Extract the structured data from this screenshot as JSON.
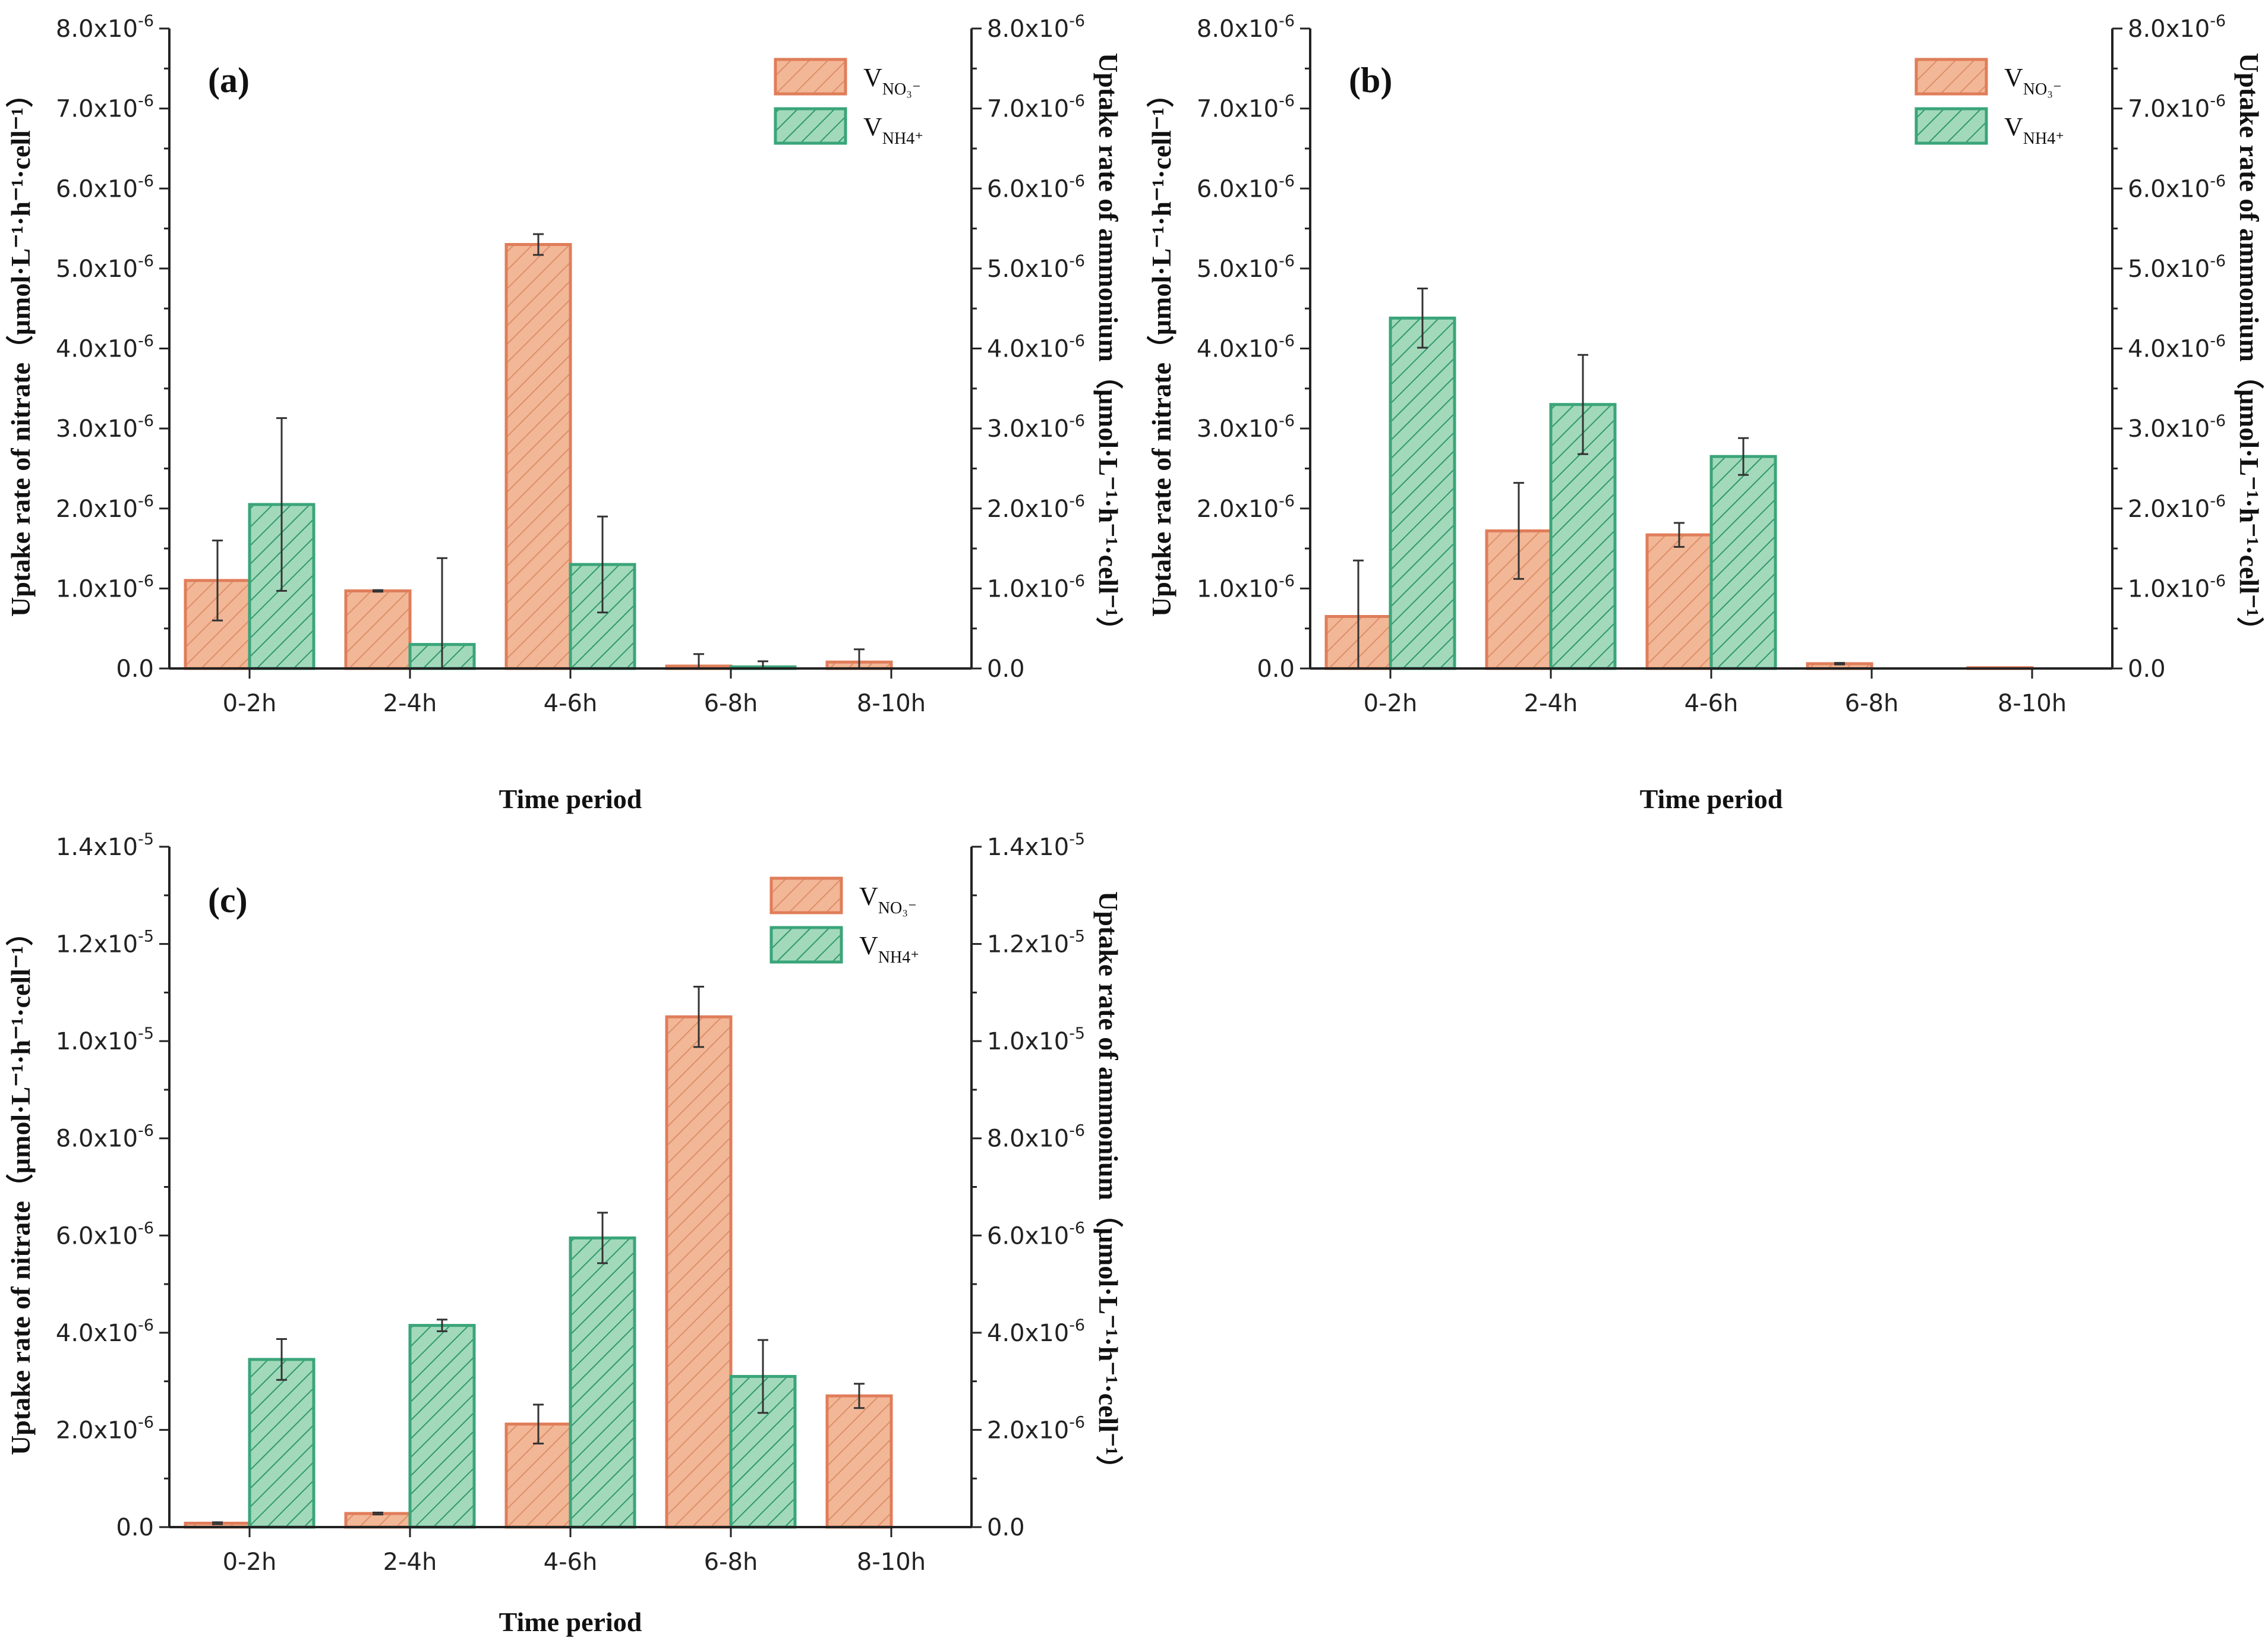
{
  "colors": {
    "nitrate_fill": "#f2b796",
    "nitrate_stroke": "#e07d5a",
    "nitrate_hatch": "#dd8f6a",
    "ammonium_fill": "#a3d9bb",
    "ammonium_stroke": "#3aa57a",
    "ammonium_hatch": "#2f9a6c",
    "axis": "#222222",
    "error_bar": "#333333"
  },
  "chart_data": [
    {
      "type": "bar",
      "panel_label": "(a)",
      "categories": [
        "0-2h",
        "2-4h",
        "4-6h",
        "6-8h",
        "8-10h"
      ],
      "xlabel": "Time period",
      "ylabel_left": "Uptake rate of nitrate（μmol·L⁻¹·h⁻¹·cell⁻¹）",
      "ylabel_right": "Uptake rate of ammonium（μmol·L⁻¹·h⁻¹·cell⁻¹）",
      "ylim": [
        0,
        8e-06
      ],
      "yticks": [
        {
          "value": 0,
          "mantissa": "0.0",
          "exp": ""
        },
        {
          "value": 1e-06,
          "mantissa": "1.0x10",
          "exp": "-6"
        },
        {
          "value": 2e-06,
          "mantissa": "2.0x10",
          "exp": "-6"
        },
        {
          "value": 3e-06,
          "mantissa": "3.0x10",
          "exp": "-6"
        },
        {
          "value": 4e-06,
          "mantissa": "4.0x10",
          "exp": "-6"
        },
        {
          "value": 5e-06,
          "mantissa": "5.0x10",
          "exp": "-6"
        },
        {
          "value": 6e-06,
          "mantissa": "6.0x10",
          "exp": "-6"
        },
        {
          "value": 7e-06,
          "mantissa": "7.0x10",
          "exp": "-6"
        },
        {
          "value": 8e-06,
          "mantissa": "8.0x10",
          "exp": "-6"
        }
      ],
      "legend": [
        {
          "key": "nitrate",
          "base": "V",
          "sub": "NO₃⁻"
        },
        {
          "key": "ammonium",
          "base": "V",
          "sub": "NH4⁺"
        }
      ],
      "series": [
        {
          "name": "V_NO3-",
          "key": "nitrate",
          "values": [
            1.1e-06,
            9.7e-07,
            5.3e-06,
            3e-08,
            8e-08
          ],
          "errors": [
            5e-07,
            1e-08,
            1.3e-07,
            1.5e-07,
            1.6e-07
          ]
        },
        {
          "name": "V_NH4+",
          "key": "ammonium",
          "values": [
            2.05e-06,
            3e-07,
            1.3e-06,
            2e-08,
            0.0
          ],
          "errors": [
            1.08e-06,
            1.08e-06,
            6e-07,
            7e-08,
            0.0
          ]
        }
      ]
    },
    {
      "type": "bar",
      "panel_label": "(b)",
      "categories": [
        "0-2h",
        "2-4h",
        "4-6h",
        "6-8h",
        "8-10h"
      ],
      "xlabel": "Time period",
      "ylabel_left": "Uptake rate of nitrate（μmol·L⁻¹·h⁻¹·cell⁻¹）",
      "ylabel_right": "Uptake rate of ammonium（μmol·L⁻¹·h⁻¹·cell⁻¹）",
      "ylim": [
        0,
        8e-06
      ],
      "yticks": [
        {
          "value": 0,
          "mantissa": "0.0",
          "exp": ""
        },
        {
          "value": 1e-06,
          "mantissa": "1.0x10",
          "exp": "-6"
        },
        {
          "value": 2e-06,
          "mantissa": "2.0x10",
          "exp": "-6"
        },
        {
          "value": 3e-06,
          "mantissa": "3.0x10",
          "exp": "-6"
        },
        {
          "value": 4e-06,
          "mantissa": "4.0x10",
          "exp": "-6"
        },
        {
          "value": 5e-06,
          "mantissa": "5.0x10",
          "exp": "-6"
        },
        {
          "value": 6e-06,
          "mantissa": "6.0x10",
          "exp": "-6"
        },
        {
          "value": 7e-06,
          "mantissa": "7.0x10",
          "exp": "-6"
        },
        {
          "value": 8e-06,
          "mantissa": "8.0x10",
          "exp": "-6"
        }
      ],
      "legend": [
        {
          "key": "nitrate",
          "base": "V",
          "sub": "NO₃⁻"
        },
        {
          "key": "ammonium",
          "base": "V",
          "sub": "NH4⁺"
        }
      ],
      "series": [
        {
          "name": "V_NO3-",
          "key": "nitrate",
          "values": [
            6.5e-07,
            1.72e-06,
            1.67e-06,
            6e-08,
            1e-08
          ],
          "errors": [
            7e-07,
            6e-07,
            1.5e-07,
            1e-08,
            0.0
          ]
        },
        {
          "name": "V_NH4+",
          "key": "ammonium",
          "values": [
            4.38e-06,
            3.3e-06,
            2.65e-06,
            0.0,
            0.0
          ],
          "errors": [
            3.7e-07,
            6.2e-07,
            2.3e-07,
            0.0,
            0.0
          ]
        }
      ]
    },
    {
      "type": "bar",
      "panel_label": "(c)",
      "categories": [
        "0-2h",
        "2-4h",
        "4-6h",
        "6-8h",
        "8-10h"
      ],
      "xlabel": "Time period",
      "ylabel_left": "Uptake rate of nitrate（μmol·L⁻¹·h⁻¹·cell⁻¹）",
      "ylabel_right": "Uptake rate of ammonium（μmol·L⁻¹·h⁻¹·cell⁻¹）",
      "ylim": [
        0,
        1.4e-05
      ],
      "yticks": [
        {
          "value": 0,
          "mantissa": "0.0",
          "exp": ""
        },
        {
          "value": 2e-06,
          "mantissa": "2.0x10",
          "exp": "-6"
        },
        {
          "value": 4e-06,
          "mantissa": "4.0x10",
          "exp": "-6"
        },
        {
          "value": 6e-06,
          "mantissa": "6.0x10",
          "exp": "-6"
        },
        {
          "value": 8e-06,
          "mantissa": "8.0x10",
          "exp": "-6"
        },
        {
          "value": 1e-05,
          "mantissa": "1.0x10",
          "exp": "-5"
        },
        {
          "value": 1.2e-05,
          "mantissa": "1.2x10",
          "exp": "-5"
        },
        {
          "value": 1.4e-05,
          "mantissa": "1.4x10",
          "exp": "-5"
        }
      ],
      "legend": [
        {
          "key": "nitrate",
          "base": "V",
          "sub": "NO₃⁻"
        },
        {
          "key": "ammonium",
          "base": "V",
          "sub": "NH4⁺"
        }
      ],
      "series": [
        {
          "name": "V_NO3-",
          "key": "nitrate",
          "values": [
            8e-08,
            2.8e-07,
            2.12e-06,
            1.05e-05,
            2.7e-06
          ],
          "errors": [
            2e-08,
            2e-08,
            4e-07,
            6.2e-07,
            2.5e-07
          ]
        },
        {
          "name": "V_NH4+",
          "key": "ammonium",
          "values": [
            3.45e-06,
            4.15e-06,
            5.95e-06,
            3.1e-06,
            0.0
          ],
          "errors": [
            4.2e-07,
            1.2e-07,
            5.2e-07,
            7.5e-07,
            0.0
          ]
        }
      ]
    }
  ]
}
